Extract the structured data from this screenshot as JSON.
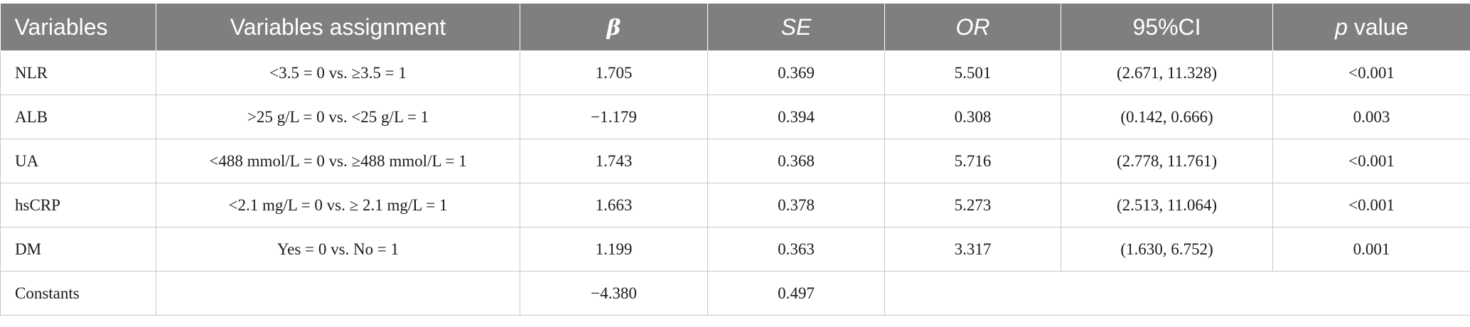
{
  "header": {
    "variables": "Variables",
    "assignment": "Variables assignment",
    "beta": "β",
    "se": "SE",
    "or": "OR",
    "ci": "95%CI",
    "p_italic": "p",
    "p_rest": " value"
  },
  "rows": [
    {
      "variable": "NLR",
      "assignment": "<3.5 = 0 vs. ≥3.5 = 1",
      "beta": "1.705",
      "se": "0.369",
      "or": "5.501",
      "ci": "(2.671, 11.328)",
      "p": "<0.001"
    },
    {
      "variable": "ALB",
      "assignment": ">25 g/L = 0 vs. <25 g/L = 1",
      "beta": "−1.179",
      "se": "0.394",
      "or": "0.308",
      "ci": "(0.142, 0.666)",
      "p": "0.003"
    },
    {
      "variable": "UA",
      "assignment": "<488 mmol/L = 0 vs. ≥488 mmol/L = 1",
      "beta": "1.743",
      "se": "0.368",
      "or": "5.716",
      "ci": "(2.778, 11.761)",
      "p": "<0.001"
    },
    {
      "variable": "hsCRP",
      "assignment": "<2.1 mg/L = 0 vs. ≥ 2.1 mg/L = 1",
      "beta": "1.663",
      "se": "0.378",
      "or": "5.273",
      "ci": "(2.513, 11.064)",
      "p": "<0.001"
    },
    {
      "variable": "DM",
      "assignment": "Yes = 0 vs. No = 1",
      "beta": "1.199",
      "se": "0.363",
      "or": "3.317",
      "ci": "(1.630, 6.752)",
      "p": "0.001"
    }
  ],
  "constants_row": {
    "variable": "Constants",
    "assignment": "",
    "beta": "−4.380",
    "se": "0.497"
  }
}
